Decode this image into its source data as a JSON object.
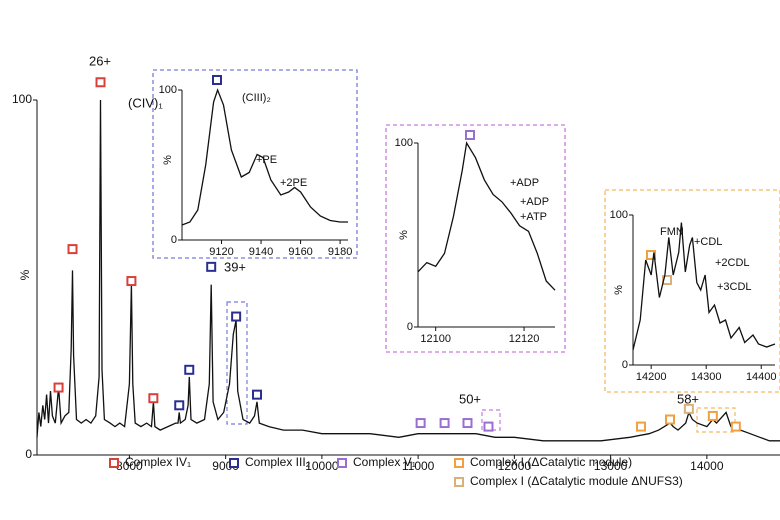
{
  "chart_data": [
    {
      "type": "line",
      "ylabel": "%",
      "xlim": [
        7040,
        14760
      ],
      "ylim": [
        0,
        100
      ],
      "xticks": [
        8000,
        9000,
        10000,
        11000,
        12000,
        13000,
        14000
      ],
      "yticks": [
        0,
        100
      ],
      "annotations": [
        "26+",
        "(CIV)₁",
        "39+",
        "50+",
        "58+"
      ],
      "trace": {
        "color": "#111111",
        "x": [
          7040,
          7060,
          7080,
          7100,
          7120,
          7140,
          7160,
          7180,
          7200,
          7230,
          7264,
          7290,
          7330,
          7370,
          7395,
          7409,
          7420,
          7450,
          7500,
          7550,
          7600,
          7650,
          7685,
          7700,
          7715,
          7740,
          7800,
          7850,
          7900,
          7950,
          8000,
          8021,
          8035,
          8060,
          8120,
          8180,
          8230,
          8249,
          8265,
          8320,
          8400,
          8480,
          8505,
          8518,
          8530,
          8580,
          8610,
          8622,
          8640,
          8700,
          8780,
          8830,
          8850,
          8870,
          8920,
          8980,
          9040,
          9080,
          9109,
          9125,
          9180,
          9250,
          9300,
          9326,
          9350,
          9450,
          9600,
          9800,
          10000,
          10200,
          10500,
          10800,
          11000,
          11200,
          11400,
          11600,
          11800,
          12000,
          12300,
          12600,
          12900,
          13200,
          13400,
          13500,
          13617,
          13650,
          13700,
          13780,
          13813,
          13850,
          13900,
          14000,
          14062,
          14100,
          14200,
          14250,
          14350,
          14450,
          14550,
          14650,
          14760
        ],
        "values": [
          5,
          12,
          8,
          14,
          10,
          17,
          9,
          18,
          11,
          9,
          19,
          9,
          11,
          12,
          30,
          52,
          28,
          10,
          9,
          10,
          9,
          11,
          22,
          100,
          24,
          10,
          9,
          8,
          9,
          8,
          20,
          48,
          20,
          9,
          8,
          9,
          8,
          15,
          8,
          7,
          8,
          9,
          9,
          12,
          9,
          10,
          14,
          22,
          10,
          9,
          10,
          20,
          48,
          15,
          10,
          12,
          20,
          34,
          38,
          18,
          10,
          9,
          11,
          15,
          9,
          8,
          7,
          7,
          6,
          6,
          6,
          5,
          6,
          6,
          6,
          6,
          5,
          5,
          4,
          4,
          4,
          5,
          6,
          7,
          9,
          8,
          7,
          9,
          12,
          10,
          9,
          8,
          10,
          9,
          12,
          8,
          7,
          6,
          5,
          4,
          4
        ]
      },
      "series": [
        {
          "name": "Complex IV₁",
          "color": "#d9403a",
          "x": [
            7264,
            7409,
            7700,
            8021,
            8249
          ],
          "values": [
            19,
            58,
            105,
            49,
            16
          ]
        },
        {
          "name": "Complex III₂",
          "color": "#2a2f8f",
          "x": [
            8518,
            8622,
            8850,
            9109,
            9326
          ],
          "values": [
            14,
            24,
            53,
            39,
            17
          ]
        },
        {
          "name": "Complex V₁",
          "color": "#9b6fcf",
          "x": [
            11026,
            11275,
            11513,
            11731
          ],
          "values": [
            9,
            9,
            9,
            8
          ]
        },
        {
          "name": "Complex I (ΔCatalytic module)",
          "color": "#f0a040",
          "x": [
            13316,
            13617,
            14062,
            14301
          ],
          "values": [
            8,
            10,
            11,
            8
          ]
        },
        {
          "name": "Complex I (ΔCatalytic module ΔNUFS3)",
          "color": "#d9b07a",
          "x": [
            13813
          ],
          "values": [
            13
          ]
        }
      ]
    },
    {
      "type": "line",
      "ylabel": "%",
      "xlim": [
        9100,
        9184
      ],
      "ylim": [
        0,
        100
      ],
      "xticks": [
        9120,
        9140,
        9160,
        9180
      ],
      "yticks": [
        0,
        100
      ],
      "annotations": [
        "(CIII)₂",
        "+PE",
        "+2PE"
      ],
      "trace": {
        "color": "#111111",
        "x": [
          9100,
          9104,
          9108,
          9112,
          9116,
          9118,
          9121,
          9125,
          9130,
          9134,
          9138,
          9141,
          9145,
          9150,
          9154,
          9157,
          9160,
          9165,
          9170,
          9175,
          9180,
          9184
        ],
        "values": [
          10,
          12,
          20,
          50,
          92,
          100,
          90,
          60,
          42,
          45,
          57,
          55,
          40,
          30,
          32,
          35,
          32,
          22,
          16,
          13,
          12,
          12
        ]
      }
    },
    {
      "type": "line",
      "ylabel": "%",
      "xlim": [
        12096,
        12127
      ],
      "ylim": [
        0,
        100
      ],
      "xticks": [
        12100,
        12120
      ],
      "yticks": [
        0,
        100
      ],
      "annotations": [
        "+ADP",
        "+ADP",
        "+ATP"
      ],
      "trace": {
        "color": "#111111",
        "x": [
          12096,
          12098,
          12100,
          12102,
          12104,
          12106,
          12107,
          12109,
          12111,
          12113,
          12115,
          12117,
          12119,
          12121,
          12123,
          12125,
          12127
        ],
        "values": [
          30,
          35,
          33,
          40,
          60,
          85,
          100,
          92,
          80,
          72,
          68,
          62,
          55,
          52,
          40,
          25,
          20
        ]
      }
    },
    {
      "type": "line",
      "ylabel": "%",
      "xlim": [
        14167,
        14425
      ],
      "ylim": [
        0,
        100
      ],
      "xticks": [
        14200,
        14300,
        14400
      ],
      "yticks": [
        0,
        100
      ],
      "annotations": [
        "FMN",
        "+CDL",
        "+2CDL",
        "+3CDL"
      ],
      "trace": {
        "color": "#111111",
        "x": [
          14167,
          14180,
          14190,
          14200,
          14205,
          14215,
          14225,
          14232,
          14240,
          14250,
          14255,
          14262,
          14270,
          14275,
          14283,
          14290,
          14298,
          14305,
          14315,
          14325,
          14335,
          14345,
          14360,
          14370,
          14385,
          14395,
          14410,
          14425
        ],
        "values": [
          10,
          30,
          70,
          60,
          75,
          45,
          60,
          85,
          60,
          75,
          95,
          62,
          80,
          85,
          55,
          50,
          60,
          35,
          40,
          28,
          30,
          18,
          25,
          15,
          20,
          14,
          12,
          14
        ]
      }
    }
  ]
}
